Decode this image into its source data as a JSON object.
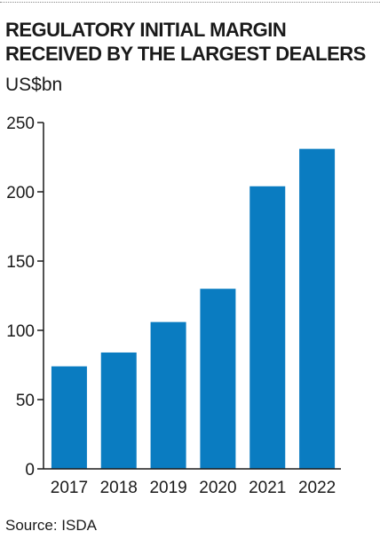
{
  "chart_data": {
    "type": "bar",
    "title_lines": [
      "REGULATORY INITIAL MARGIN",
      "RECEIVED BY THE LARGEST DEALERS"
    ],
    "unit": "US$bn",
    "categories": [
      "2017",
      "2018",
      "2019",
      "2020",
      "2021",
      "2022"
    ],
    "values": [
      74,
      84,
      106,
      130,
      204,
      231
    ],
    "ylim": [
      0,
      250
    ],
    "yticks": [
      0,
      50,
      100,
      150,
      200,
      250
    ],
    "grid": false,
    "legend": "none",
    "bar_color": "#0a7cc1",
    "axis_color": "#1a1a1a"
  },
  "source": "Source: ISDA"
}
